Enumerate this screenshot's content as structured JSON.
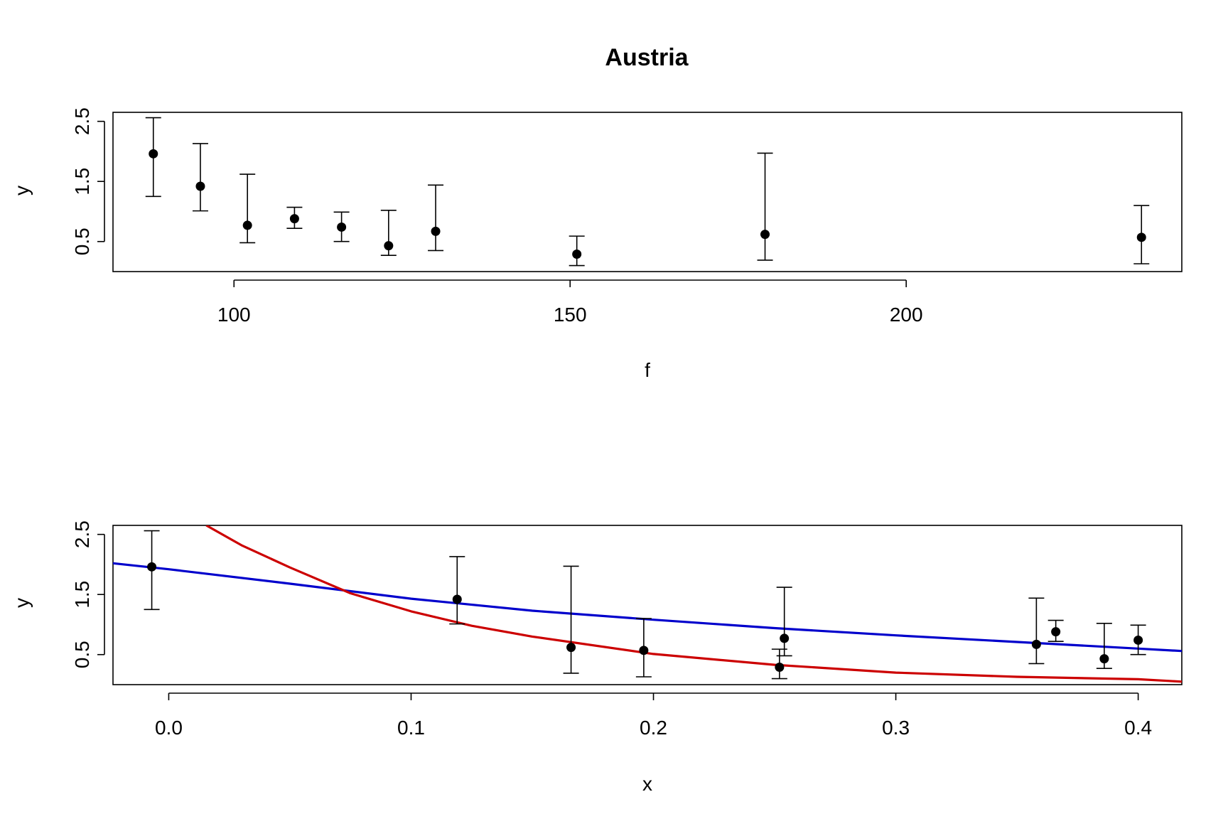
{
  "chart_data": [
    {
      "type": "scatter",
      "title": "Austria",
      "xlabel": "f",
      "ylabel": "y",
      "xlim": [
        82,
        241
      ],
      "ylim": [
        0,
        2.65
      ],
      "xticks": [
        100,
        150,
        200
      ],
      "xtick_labels": [
        "100",
        "150",
        "200"
      ],
      "yticks": [
        0.5,
        1.5,
        2.5
      ],
      "ytick_labels": [
        "0.5",
        "1.5",
        "2.5"
      ],
      "grid": false,
      "points": [
        {
          "x": 88,
          "y": 1.96,
          "lo": 1.25,
          "hi": 2.56
        },
        {
          "x": 95,
          "y": 1.42,
          "lo": 1.01,
          "hi": 2.13
        },
        {
          "x": 102,
          "y": 0.77,
          "lo": 0.48,
          "hi": 1.62
        },
        {
          "x": 109,
          "y": 0.88,
          "lo": 0.72,
          "hi": 1.07
        },
        {
          "x": 116,
          "y": 0.74,
          "lo": 0.5,
          "hi": 0.99
        },
        {
          "x": 123,
          "y": 0.43,
          "lo": 0.27,
          "hi": 1.02
        },
        {
          "x": 130,
          "y": 0.67,
          "lo": 0.35,
          "hi": 1.44
        },
        {
          "x": 151,
          "y": 0.29,
          "lo": 0.1,
          "hi": 0.59
        },
        {
          "x": 179,
          "y": 0.62,
          "lo": 0.19,
          "hi": 1.97
        },
        {
          "x": 235,
          "y": 0.57,
          "lo": 0.13,
          "hi": 1.1
        }
      ]
    },
    {
      "type": "line",
      "title": "",
      "xlabel": "x",
      "ylabel": "y",
      "xlim": [
        -0.023,
        0.418
      ],
      "ylim": [
        0,
        2.65
      ],
      "xticks": [
        0.0,
        0.1,
        0.2,
        0.3,
        0.4
      ],
      "xtick_labels": [
        "0.0",
        "0.1",
        "0.2",
        "0.3",
        "0.4"
      ],
      "yticks": [
        0.5,
        1.5,
        2.5
      ],
      "ytick_labels": [
        "0.5",
        "1.5",
        "2.5"
      ],
      "grid": false,
      "points": [
        {
          "x": -0.007,
          "y": 1.96,
          "lo": 1.25,
          "hi": 2.56
        },
        {
          "x": 0.119,
          "y": 1.42,
          "lo": 1.01,
          "hi": 2.13
        },
        {
          "x": 0.166,
          "y": 0.62,
          "lo": 0.19,
          "hi": 1.97
        },
        {
          "x": 0.196,
          "y": 0.57,
          "lo": 0.13,
          "hi": 1.1
        },
        {
          "x": 0.252,
          "y": 0.29,
          "lo": 0.1,
          "hi": 0.59
        },
        {
          "x": 0.254,
          "y": 0.77,
          "lo": 0.48,
          "hi": 1.62
        },
        {
          "x": 0.358,
          "y": 0.67,
          "lo": 0.35,
          "hi": 1.44
        },
        {
          "x": 0.366,
          "y": 0.88,
          "lo": 0.72,
          "hi": 1.07
        },
        {
          "x": 0.386,
          "y": 0.43,
          "lo": 0.27,
          "hi": 1.02
        },
        {
          "x": 0.4,
          "y": 0.74,
          "lo": 0.5,
          "hi": 0.99
        }
      ],
      "series": [
        {
          "color": "#0000cc",
          "x": [
            -0.023,
            0.0,
            0.05,
            0.1,
            0.15,
            0.2,
            0.25,
            0.3,
            0.35,
            0.4,
            0.418
          ],
          "y": [
            2.02,
            1.92,
            1.68,
            1.43,
            1.23,
            1.08,
            0.94,
            0.82,
            0.71,
            0.6,
            0.56
          ]
        },
        {
          "color": "#cc0000",
          "x": [
            0.0155,
            0.03,
            0.05,
            0.075,
            0.1,
            0.125,
            0.15,
            0.2,
            0.25,
            0.3,
            0.35,
            0.4,
            0.418
          ],
          "y": [
            2.65,
            2.32,
            1.95,
            1.52,
            1.22,
            0.98,
            0.8,
            0.51,
            0.33,
            0.2,
            0.13,
            0.09,
            0.05
          ]
        }
      ]
    }
  ]
}
